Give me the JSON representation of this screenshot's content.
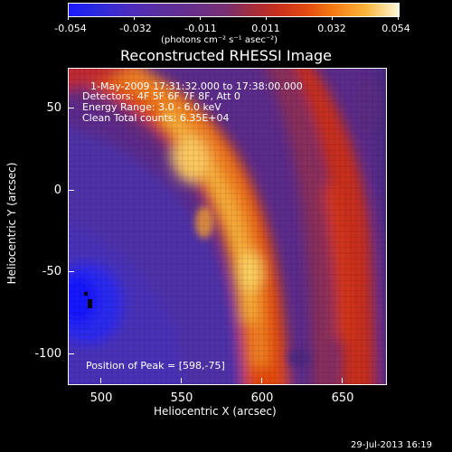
{
  "colorbar": {
    "ticks": [
      "-0.054",
      "-0.032",
      "-0.011",
      "0.011",
      "0.032",
      "0.054"
    ],
    "units": "(photons cm⁻² s⁻¹ asec⁻²)"
  },
  "title": "Reconstructed RHESSI Image",
  "info": {
    "line1": "1-May-2009 17:31:32.000 to 17:38:00.000",
    "line2": "Detectors: 4F 5F 6F 7F 8F, Att 0",
    "line3": "Energy Range: 3.0 - 6.0 keV",
    "line4": "Clean     Total counts: 6.35E+04",
    "peak": "Position of Peak = [598,-75]"
  },
  "axes": {
    "x_ticks": [
      "500",
      "550",
      "600",
      "650"
    ],
    "y_ticks": [
      "50",
      "0",
      "-50",
      "-100"
    ],
    "x_label": "Heliocentric X (arcsec)",
    "y_label": "Heliocentric Y (arcsec)",
    "x_range": [
      480,
      672
    ],
    "y_range": [
      -118,
      72
    ]
  },
  "timestamp": "29-Jul-2013 16:19",
  "colors": {
    "background": "#000000",
    "low": "#1a1aff",
    "mid": "#6b2f86",
    "high": "#fff8d8"
  }
}
